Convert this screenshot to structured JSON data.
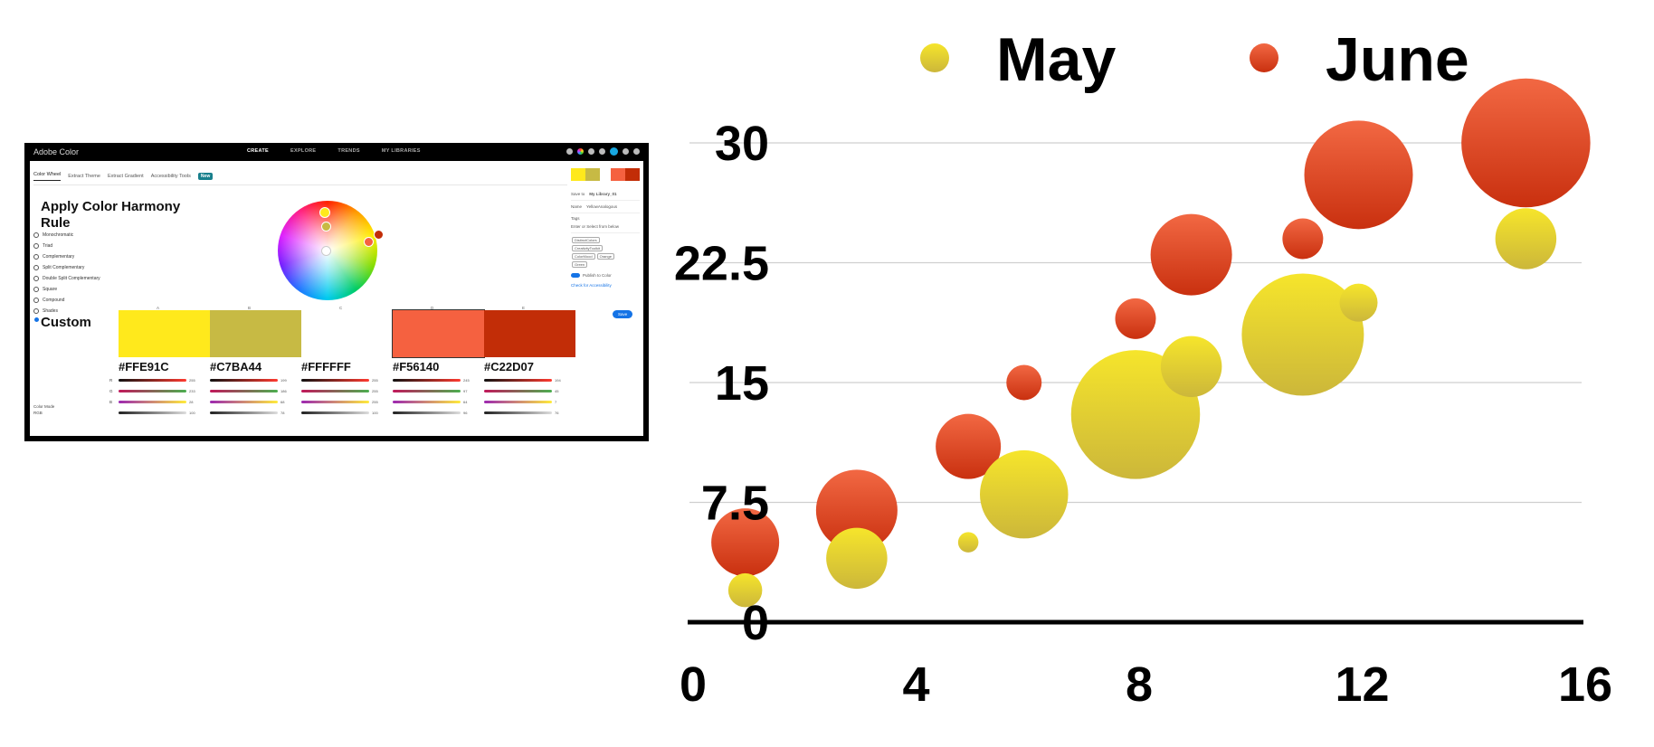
{
  "screenshot": {
    "brand": "Adobe Color",
    "nav": [
      "CREATE",
      "EXPLORE",
      "TRENDS",
      "MY LIBRARIES"
    ],
    "active_nav": "CREATE",
    "subtabs": [
      "Color Wheel",
      "Extract Theme",
      "Extract Gradient",
      "Accessibility Tools"
    ],
    "new_badge": "New",
    "harmony_title": "Apply Color Harmony Rule",
    "rules": [
      "Monochromatic",
      "Triad",
      "Complementary",
      "Split Complementary",
      "Double Split Complementary",
      "Square",
      "Compound",
      "Shades"
    ],
    "custom_label": "Custom",
    "swatch_index_labels": [
      "A",
      "B",
      "C",
      "D",
      "E"
    ],
    "swatches": [
      {
        "hex": "#FFE91C",
        "color": "#FFE91C",
        "values": [
          "255",
          "233",
          "28",
          "100"
        ]
      },
      {
        "hex": "#C7BA44",
        "color": "#C7BA44",
        "values": [
          "199",
          "186",
          "68",
          "78"
        ]
      },
      {
        "hex": "#FFFFFF",
        "color": "#FFFFFF",
        "values": [
          "255",
          "255",
          "255",
          "100"
        ]
      },
      {
        "hex": "#F56140",
        "color": "#F56140",
        "values": [
          "245",
          "97",
          "64",
          "96"
        ]
      },
      {
        "hex": "#C22D07",
        "color": "#C22D07",
        "values": [
          "194",
          "45",
          "7",
          "76"
        ]
      }
    ],
    "channels": [
      "R",
      "G",
      "B"
    ],
    "color_mode_label": "Color Mode",
    "color_mode_value": "RGB",
    "right_panel": {
      "save_to_label": "Save to",
      "library": "My Library_01",
      "name_label": "Name",
      "name_value": "YellowAnalogous",
      "tags_label": "Tags",
      "tags_placeholder": "Enter or Select from below",
      "tags": [
        "DistinctColors",
        "CreativityToolkit",
        "ColorMood",
        "Orange",
        "Green"
      ],
      "publish_label": "Publish to Color",
      "accessibility_link": "Check for Accessibility",
      "save_button": "Save"
    }
  },
  "chart_data": {
    "type": "bubble",
    "legend_position": "top",
    "xlim": [
      0,
      16
    ],
    "ylim": [
      0,
      30
    ],
    "x_ticks": [
      "0",
      "4",
      "8",
      "12",
      "16"
    ],
    "y_ticks": [
      "0",
      "7.5",
      "15",
      "22.5",
      "30"
    ],
    "grid": "horizontal",
    "series": [
      {
        "name": "June",
        "color": "#E2451F",
        "points": [
          {
            "x": 1,
            "y": 5,
            "size": 5
          },
          {
            "x": 3,
            "y": 7,
            "size": 6
          },
          {
            "x": 5,
            "y": 11,
            "size": 4.8
          },
          {
            "x": 6,
            "y": 15,
            "size": 2.6
          },
          {
            "x": 8,
            "y": 19,
            "size": 3
          },
          {
            "x": 9,
            "y": 23,
            "size": 6
          },
          {
            "x": 11,
            "y": 24,
            "size": 3
          },
          {
            "x": 12,
            "y": 28,
            "size": 8
          },
          {
            "x": 15,
            "y": 30,
            "size": 9.5
          }
        ]
      },
      {
        "name": "May",
        "color": "#EDD22A",
        "points": [
          {
            "x": 1,
            "y": 2,
            "size": 2.5
          },
          {
            "x": 3,
            "y": 4,
            "size": 4.5
          },
          {
            "x": 5,
            "y": 5,
            "size": 1.5
          },
          {
            "x": 6,
            "y": 8,
            "size": 6.5
          },
          {
            "x": 8,
            "y": 13,
            "size": 9.5
          },
          {
            "x": 9,
            "y": 16,
            "size": 4.5
          },
          {
            "x": 11,
            "y": 18,
            "size": 9
          },
          {
            "x": 12,
            "y": 20,
            "size": 2.8
          },
          {
            "x": 15,
            "y": 24,
            "size": 4.5
          }
        ]
      }
    ]
  }
}
